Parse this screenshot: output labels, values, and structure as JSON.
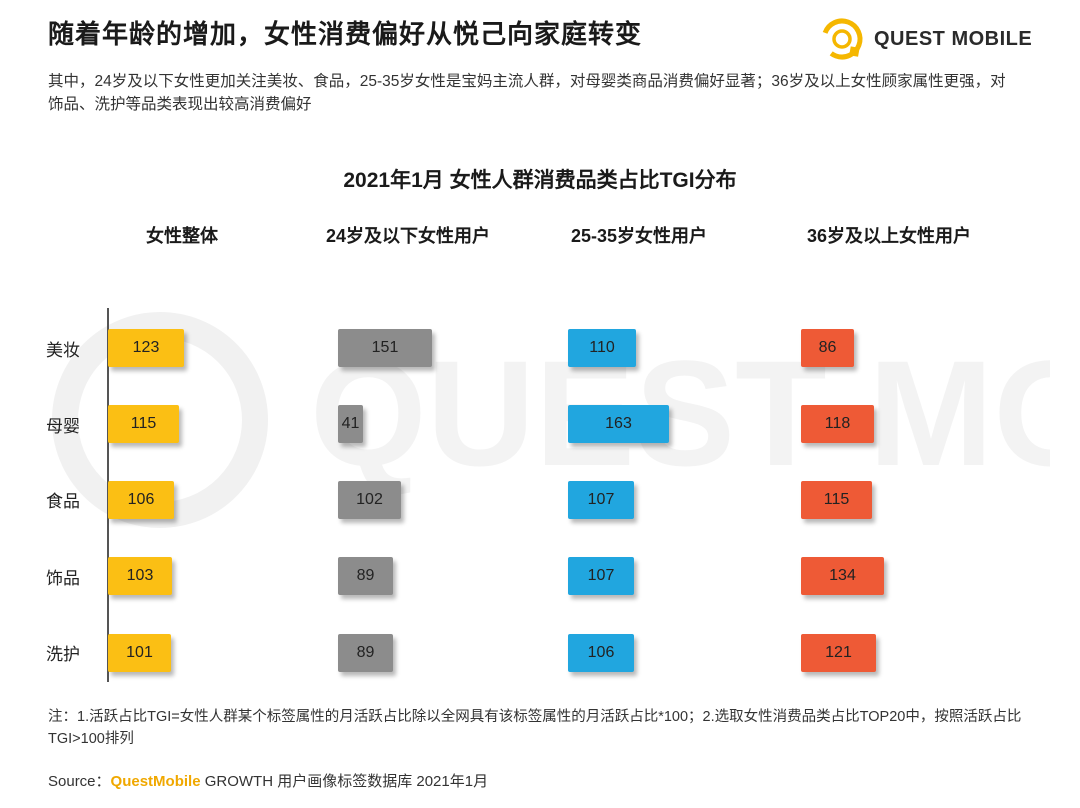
{
  "header": {
    "title": "随着年龄的增加，女性消费偏好从悦己向家庭转变",
    "subtitle": "其中，24岁及以下女性更加关注美妆、食品，25-35岁女性是宝妈主流人群，对母婴类商品消费偏好显著；36岁及以上女性顾家属性更强，对饰品、洗护等品类表现出较高消费偏好",
    "logo_text": "QUEST MOBILE"
  },
  "chart_data": {
    "type": "bar",
    "orientation": "horizontal",
    "title": "2021年1月 女性人群消费品类占比TGI分布",
    "categories": [
      "美妆",
      "母婴",
      "食品",
      "饰品",
      "洗护"
    ],
    "series": [
      {
        "name": "女性整体",
        "color": "#FBBF14",
        "values": [
          123,
          115,
          106,
          103,
          101
        ]
      },
      {
        "name": "24岁及以下女性用户",
        "color": "#8C8C8C",
        "values": [
          151,
          41,
          102,
          89,
          89
        ]
      },
      {
        "name": "25-35岁女性用户",
        "color": "#21A6DF",
        "values": [
          110,
          163,
          107,
          107,
          106
        ]
      },
      {
        "name": "36岁及以上女性用户",
        "color": "#EE5A36",
        "values": [
          86,
          118,
          115,
          134,
          121
        ]
      }
    ],
    "grid": false,
    "legend": "none"
  },
  "footer": {
    "note": "注：1.活跃占比TGI=女性人群某个标签属性的月活跃占比除以全网具有该标签属性的月活跃占比*100；2.选取女性消费品类占比TOP20中，按照活跃占比TGI>100排列",
    "source_label": "Source：",
    "source_brand": "QuestMobile",
    "source_rest": " GROWTH 用户画像标签数据库 2021年1月"
  },
  "watermark_text": "QUEST MOBILE"
}
